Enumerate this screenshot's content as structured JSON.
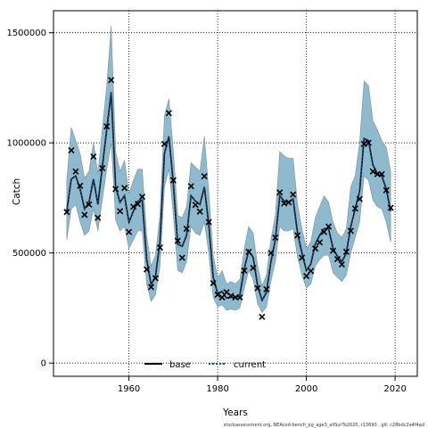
{
  "chart_data": {
    "type": "line",
    "title": "",
    "xlabel": "Years",
    "ylabel": "Catch",
    "xlim": [
      1943,
      2025
    ],
    "ylim": [
      -60000,
      1600000
    ],
    "xticks": [
      1960,
      1980,
      2000,
      2020
    ],
    "yticks": [
      0,
      500000,
      1000000,
      1500000
    ],
    "xtick_labels": [
      "1960",
      "1980",
      "2000",
      "2020"
    ],
    "ytick_labels": [
      "0",
      "500000",
      "1000000",
      "1500000"
    ],
    "grid": "dotted",
    "legend": {
      "placement": "bottom-center",
      "entries": [
        "base",
        "current"
      ]
    },
    "footer": "stockassessment.org, NEAcod-bench_pg_age3_allSurTo2020, r13690 , git: c28bdc2a4f4ad",
    "colors": {
      "band": "#8fb9cc",
      "band_edge": "#7a8f9a",
      "base": "#000000",
      "current": "#1a4a7a",
      "points": "#000000"
    },
    "years": [
      1946,
      1947,
      1948,
      1949,
      1950,
      1951,
      1952,
      1953,
      1954,
      1955,
      1956,
      1957,
      1958,
      1959,
      1960,
      1961,
      1962,
      1963,
      1964,
      1965,
      1966,
      1967,
      1968,
      1969,
      1970,
      1971,
      1972,
      1973,
      1974,
      1975,
      1976,
      1977,
      1978,
      1979,
      1980,
      1981,
      1982,
      1983,
      1984,
      1985,
      1986,
      1987,
      1988,
      1989,
      1990,
      1991,
      1992,
      1993,
      1994,
      1995,
      1996,
      1997,
      1998,
      1999,
      2000,
      2001,
      2002,
      2003,
      2004,
      2005,
      2006,
      2007,
      2008,
      2009,
      2010,
      2011,
      2012,
      2013,
      2014,
      2015,
      2016,
      2017,
      2018,
      2019
    ],
    "observed": [
      686000,
      966000,
      870000,
      805000,
      673000,
      720000,
      938000,
      660000,
      885000,
      1075000,
      1285000,
      790000,
      690000,
      795000,
      595000,
      710000,
      722000,
      755000,
      425000,
      345000,
      385000,
      525000,
      995000,
      1135000,
      830000,
      555000,
      478000,
      610000,
      803000,
      718000,
      688000,
      848000,
      640000,
      363000,
      310000,
      298000,
      322000,
      305000,
      298000,
      298000,
      420000,
      505000,
      432000,
      340000,
      210000,
      335000,
      500000,
      570000,
      775000,
      725000,
      730000,
      765000,
      580000,
      478000,
      395000,
      418000,
      520000,
      548000,
      595000,
      620000,
      510000,
      472000,
      448000,
      505000,
      600000,
      702000,
      745000,
      995000,
      1000000,
      870000,
      858000,
      858000,
      785000,
      705000
    ],
    "series": [
      {
        "name": "base",
        "values": [
          690000,
          835000,
          850000,
          790000,
          700000,
          730000,
          835000,
          720000,
          890000,
          1060000,
          1230000,
          800000,
          730000,
          760000,
          640000,
          690000,
          735000,
          740000,
          470000,
          355000,
          395000,
          550000,
          950000,
          1030000,
          820000,
          540000,
          530000,
          580000,
          760000,
          735000,
          720000,
          800000,
          630000,
          390000,
          315000,
          325000,
          295000,
          300000,
          295000,
          310000,
          430000,
          510000,
          480000,
          350000,
          285000,
          320000,
          460000,
          560000,
          760000,
          735000,
          730000,
          745000,
          590000,
          500000,
          420000,
          450000,
          540000,
          580000,
          610000,
          610000,
          520000,
          485000,
          460000,
          500000,
          620000,
          700000,
          780000,
          1020000,
          1010000,
          900000,
          860000,
          850000,
          790000,
          690000
        ]
      },
      {
        "name": "current",
        "values": [
          690000,
          835000,
          850000,
          790000,
          700000,
          730000,
          835000,
          720000,
          890000,
          1060000,
          1230000,
          800000,
          730000,
          760000,
          640000,
          690000,
          735000,
          740000,
          470000,
          355000,
          395000,
          550000,
          950000,
          1030000,
          820000,
          540000,
          530000,
          580000,
          760000,
          735000,
          720000,
          800000,
          630000,
          390000,
          315000,
          325000,
          295000,
          300000,
          295000,
          310000,
          430000,
          510000,
          480000,
          350000,
          285000,
          320000,
          460000,
          560000,
          760000,
          735000,
          730000,
          745000,
          590000,
          500000,
          420000,
          450000,
          540000,
          580000,
          610000,
          610000,
          520000,
          485000,
          460000,
          500000,
          620000,
          700000,
          780000,
          1020000,
          1010000,
          900000,
          860000,
          850000,
          790000,
          690000
        ]
      }
    ],
    "ci_lower": [
      560000,
      700000,
      720000,
      640000,
      580000,
      600000,
      700000,
      600000,
      740000,
      880000,
      1000000,
      650000,
      600000,
      620000,
      520000,
      560000,
      600000,
      600000,
      360000,
      280000,
      310000,
      440000,
      800000,
      880000,
      680000,
      420000,
      410000,
      460000,
      620000,
      590000,
      580000,
      640000,
      500000,
      300000,
      255000,
      265000,
      240000,
      245000,
      240000,
      250000,
      340000,
      420000,
      380000,
      270000,
      230000,
      255000,
      370000,
      460000,
      620000,
      600000,
      600000,
      610000,
      480000,
      400000,
      340000,
      360000,
      440000,
      470000,
      490000,
      490000,
      410000,
      390000,
      370000,
      400000,
      500000,
      570000,
      640000,
      850000,
      830000,
      740000,
      710000,
      700000,
      640000,
      550000
    ],
    "ci_upper": [
      830000,
      1070000,
      1010000,
      950000,
      840000,
      870000,
      1000000,
      860000,
      1060000,
      1260000,
      1530000,
      960000,
      870000,
      920000,
      770000,
      830000,
      880000,
      880000,
      580000,
      440000,
      490000,
      670000,
      1120000,
      1200000,
      970000,
      670000,
      660000,
      710000,
      910000,
      890000,
      870000,
      1030000,
      780000,
      490000,
      385000,
      420000,
      360000,
      370000,
      360000,
      380000,
      520000,
      620000,
      590000,
      440000,
      350000,
      400000,
      560000,
      670000,
      960000,
      940000,
      930000,
      930000,
      720000,
      610000,
      520000,
      550000,
      660000,
      710000,
      760000,
      730000,
      640000,
      590000,
      570000,
      610000,
      800000,
      850000,
      1000000,
      1280000,
      1260000,
      1100000,
      1060000,
      1010000,
      980000,
      870000
    ]
  }
}
